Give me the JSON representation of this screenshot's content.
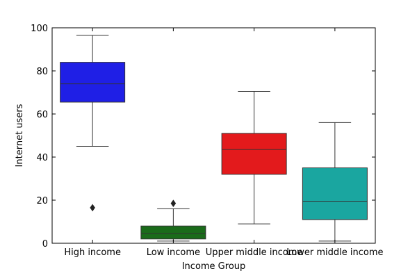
{
  "chart_data": {
    "type": "box",
    "title": "",
    "xlabel": "Income Group",
    "ylabel": "Internet users",
    "ylim": [
      0,
      100
    ],
    "yticks": [
      0,
      20,
      40,
      60,
      80,
      100
    ],
    "grid": false,
    "legend": "none",
    "categories": [
      "High income",
      "Low income",
      "Upper middle income",
      "Lower middle income"
    ],
    "boxes": [
      {
        "category": "High income",
        "color": "#1f1fe6",
        "whisker_low": 45.0,
        "q1": 65.5,
        "median": 74.0,
        "q3": 84.0,
        "whisker_high": 96.5,
        "outliers": [
          16.5
        ]
      },
      {
        "category": "Low income",
        "color": "#1a6b1a",
        "whisker_low": 1.0,
        "q1": 2.0,
        "median": 4.5,
        "q3": 8.0,
        "whisker_high": 16.0,
        "outliers": [
          18.5
        ]
      },
      {
        "category": "Upper middle income",
        "color": "#e31a1c",
        "whisker_low": 9.0,
        "q1": 32.0,
        "median": 43.5,
        "q3": 51.0,
        "whisker_high": 70.5,
        "outliers": []
      },
      {
        "category": "Lower middle income",
        "color": "#1aa6a0",
        "whisker_low": 1.0,
        "q1": 11.0,
        "median": 19.5,
        "q3": 35.0,
        "whisker_high": 56.0,
        "outliers": []
      }
    ]
  }
}
